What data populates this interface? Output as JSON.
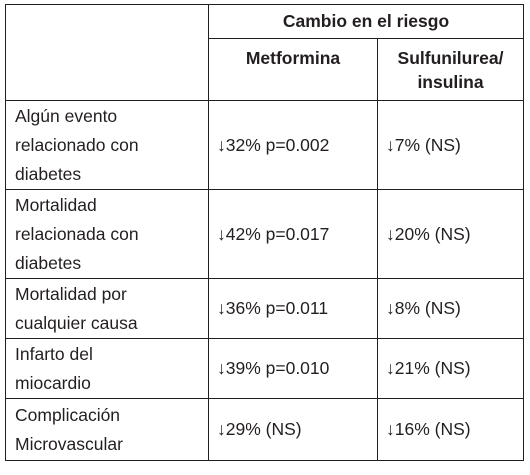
{
  "table": {
    "group_header": "Cambio en el riesgo",
    "columns": [
      "Metformina",
      "Sulfunilurea/\ninsulina"
    ],
    "rows": [
      {
        "label": "Algún evento\nrelacionado con\ndiabetes",
        "metformina": "↓32% p=0.002",
        "sulfunilurea": "↓7% (NS)"
      },
      {
        "label": "Mortalidad\nrelacionada con\ndiabetes",
        "metformina": "↓42% p=0.017",
        "sulfunilurea": "↓20% (NS)"
      },
      {
        "label": "Mortalidad por\ncualquier causa",
        "metformina": "↓36% p=0.011",
        "sulfunilurea": "↓8% (NS)"
      },
      {
        "label": "Infarto del\nmiocardio",
        "metformina": "↓39% p=0.010",
        "sulfunilurea": "↓21% (NS)"
      },
      {
        "label": "Complicación\nMicrovascular",
        "metformina": "↓29% (NS)",
        "sulfunilurea": "↓16% (NS)"
      }
    ]
  }
}
